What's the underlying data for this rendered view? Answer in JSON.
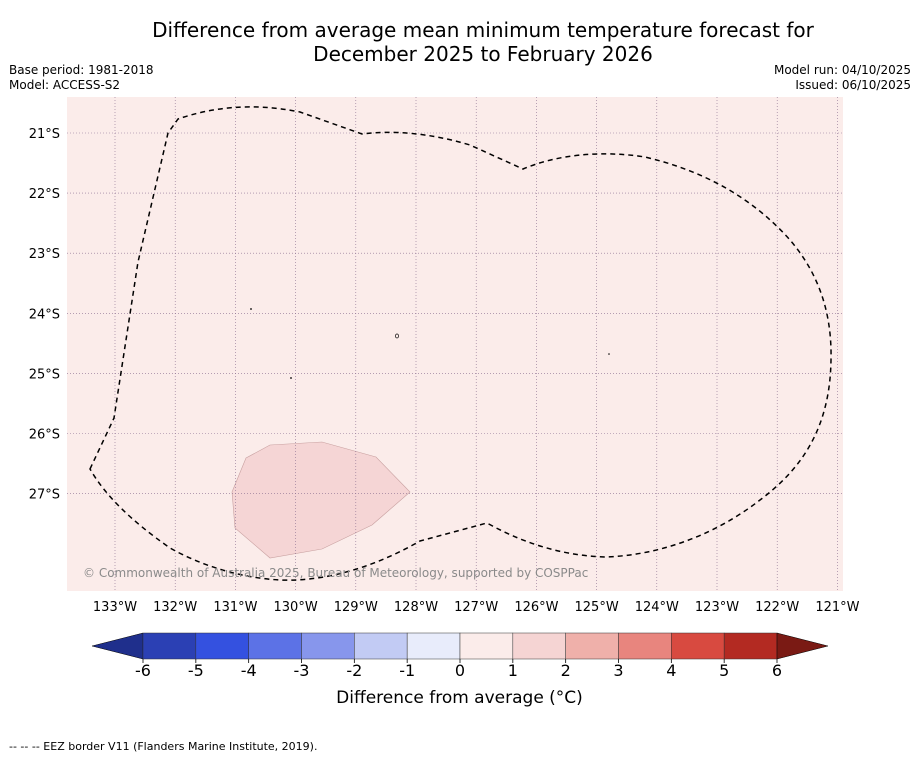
{
  "title_line1": "Difference from average mean minimum temperature forecast for",
  "title_line2": "December 2025 to February 2026",
  "base_period": "Base period: 1981-2018",
  "model": "Model: ACCESS-S2",
  "model_run": "Model run: 04/10/2025",
  "issued": "Issued: 06/10/2025",
  "copyright": "© Commonwealth of Australia 2025, Bureau of Meteorology, supported by COSPPac",
  "lat_labels": [
    "21°S",
    "22°S",
    "23°S",
    "24°S",
    "25°S",
    "26°S",
    "27°S"
  ],
  "lon_labels": [
    "133°W",
    "132°W",
    "131°W",
    "130°W",
    "129°W",
    "128°W",
    "127°W",
    "126°W",
    "125°W",
    "124°W",
    "123°W",
    "122°W",
    "121°W"
  ],
  "colorbar": {
    "label": "Difference from average (°C)",
    "ticks": [
      "-6",
      "-5",
      "-4",
      "-3",
      "-2",
      "-1",
      "0",
      "1",
      "2",
      "3",
      "4",
      "5",
      "6"
    ],
    "colors": [
      "#1f2f8c",
      "#2b40b4",
      "#3451e0",
      "#5c72e6",
      "#8796ec",
      "#c2cbf4",
      "#e8ecfb",
      "#fbecea",
      "#f5d4d3",
      "#efb0aa",
      "#e8857e",
      "#d84a40",
      "#b32a22",
      "#7a1a14"
    ]
  },
  "map_colors": {
    "ocean_anomaly_0_1": "#fbecea",
    "anomaly_1_2": "#f5d5d5",
    "gridline": "#8a6d8f"
  },
  "footnote": "-- -- -- EEZ border V11 (Flanders Marine Institute, 2019)."
}
